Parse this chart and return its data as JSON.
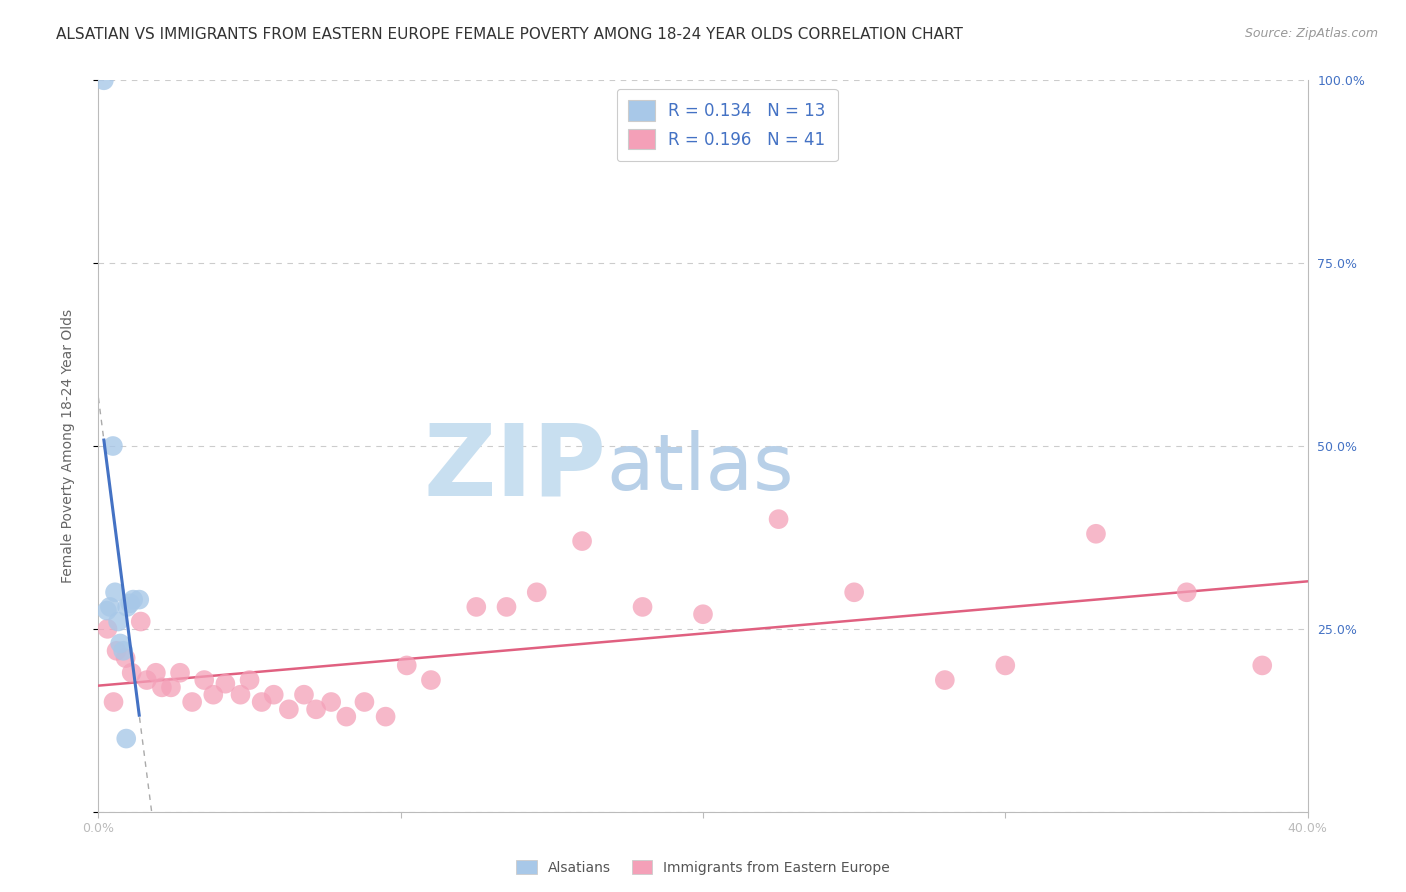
{
  "title": "ALSATIAN VS IMMIGRANTS FROM EASTERN EUROPE FEMALE POVERTY AMONG 18-24 YEAR OLDS CORRELATION CHART",
  "source": "Source: ZipAtlas.com",
  "ylabel": "Female Poverty Among 18-24 Year Olds",
  "xlim": [
    0.0,
    40.0
  ],
  "ylim": [
    0.0,
    100.0
  ],
  "right_yticks": [
    0.0,
    25.0,
    50.0,
    75.0,
    100.0
  ],
  "right_yticklabels": [
    "",
    "25.0%",
    "50.0%",
    "75.0%",
    "100.0%"
  ],
  "legend1_R": "0.134",
  "legend1_N": "13",
  "legend2_R": "0.196",
  "legend2_N": "41",
  "color_blue": "#a8c8e8",
  "color_blue_line": "#4472c4",
  "color_pink": "#f4a0b8",
  "color_pink_line": "#e06080",
  "color_blue_text": "#4472c4",
  "watermark_zip": "ZIP",
  "watermark_atlas": "atlas",
  "watermark_color_zip": "#c8dff0",
  "watermark_color_atlas": "#b8d0e8",
  "background": "#ffffff",
  "grid_color": "#cccccc",
  "alsatian_x": [
    0.18,
    0.38,
    0.55,
    0.65,
    0.72,
    0.82,
    0.95,
    1.05,
    1.15,
    0.28,
    0.48,
    0.92,
    1.35
  ],
  "alsatian_y": [
    100.0,
    28.0,
    30.0,
    26.0,
    23.0,
    22.0,
    28.0,
    28.5,
    29.0,
    27.5,
    50.0,
    10.0,
    29.0
  ],
  "eastern_europe_x": [
    0.3,
    0.6,
    0.9,
    1.1,
    1.4,
    1.6,
    1.9,
    2.1,
    2.4,
    2.7,
    3.1,
    3.5,
    3.8,
    4.2,
    4.7,
    5.0,
    5.4,
    5.8,
    6.3,
    6.8,
    7.2,
    7.7,
    8.2,
    8.8,
    9.5,
    10.2,
    11.0,
    12.5,
    13.5,
    14.5,
    16.0,
    18.0,
    20.0,
    22.5,
    25.0,
    28.0,
    30.0,
    33.0,
    36.0,
    38.5,
    0.5
  ],
  "eastern_europe_y": [
    25.0,
    22.0,
    21.0,
    19.0,
    26.0,
    18.0,
    19.0,
    17.0,
    17.0,
    19.0,
    15.0,
    18.0,
    16.0,
    17.5,
    16.0,
    18.0,
    15.0,
    16.0,
    14.0,
    16.0,
    14.0,
    15.0,
    13.0,
    15.0,
    13.0,
    20.0,
    18.0,
    28.0,
    28.0,
    30.0,
    37.0,
    28.0,
    27.0,
    40.0,
    30.0,
    18.0,
    20.0,
    38.0,
    30.0,
    20.0,
    15.0
  ],
  "title_fontsize": 11,
  "axis_label_fontsize": 10,
  "tick_fontsize": 9,
  "legend_fontsize": 12
}
